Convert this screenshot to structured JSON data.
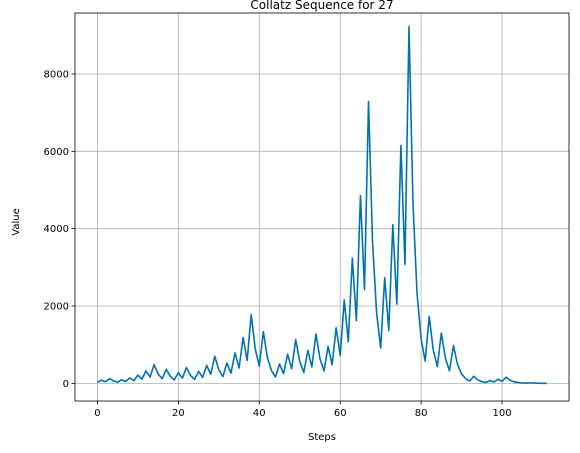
{
  "chart_data": {
    "type": "line",
    "title": "Collatz Sequence for 27",
    "xlabel": "Steps",
    "ylabel": "Value",
    "xlim": [
      -5.55,
      116.55
    ],
    "ylim": [
      -456,
      9577
    ],
    "xticks": [
      0,
      20,
      40,
      60,
      80,
      100
    ],
    "yticks": [
      0,
      2000,
      4000,
      6000,
      8000
    ],
    "xtick_labels": [
      "0",
      "20",
      "40",
      "60",
      "80",
      "100"
    ],
    "ytick_labels": [
      "0",
      "2000",
      "4000",
      "6000",
      "8000"
    ],
    "grid": true,
    "line_color": "#0072b2",
    "series": [
      {
        "x": [
          0,
          1,
          2,
          3,
          4,
          5,
          6,
          7,
          8,
          9,
          10,
          11,
          12,
          13,
          14,
          15,
          16,
          17,
          18,
          19,
          20,
          21,
          22,
          23,
          24,
          25,
          26,
          27,
          28,
          29,
          30,
          31,
          32,
          33,
          34,
          35,
          36,
          37,
          38,
          39,
          40,
          41,
          42,
          43,
          44,
          45,
          46,
          47,
          48,
          49,
          50,
          51,
          52,
          53,
          54,
          55,
          56,
          57,
          58,
          59,
          60,
          61,
          62,
          63,
          64,
          65,
          66,
          67,
          68,
          69,
          70,
          71,
          72,
          73,
          74,
          75,
          76,
          77,
          78,
          79,
          80,
          81,
          82,
          83,
          84,
          85,
          86,
          87,
          88,
          89,
          90,
          91,
          92,
          93,
          94,
          95,
          96,
          97,
          98,
          99,
          100,
          101,
          102,
          103,
          104,
          105,
          106,
          107,
          108,
          109,
          110,
          111
        ],
        "y": [
          27,
          82,
          41,
          124,
          62,
          31,
          94,
          47,
          142,
          71,
          214,
          107,
          322,
          161,
          484,
          242,
          121,
          364,
          182,
          91,
          274,
          137,
          412,
          206,
          103,
          310,
          155,
          466,
          233,
          700,
          350,
          175,
          526,
          263,
          790,
          395,
          1186,
          593,
          1780,
          890,
          445,
          1336,
          668,
          334,
          167,
          502,
          251,
          754,
          377,
          1132,
          566,
          283,
          850,
          425,
          1276,
          638,
          319,
          958,
          479,
          1438,
          719,
          2158,
          1079,
          3238,
          1619,
          4858,
          2429,
          7288,
          3644,
          1822,
          911,
          2734,
          1367,
          4102,
          2051,
          6154,
          3077,
          9232,
          4616,
          2308,
          1154,
          577,
          1732,
          866,
          433,
          1300,
          650,
          325,
          976,
          488,
          244,
          122,
          61,
          184,
          92,
          46,
          23,
          70,
          35,
          106,
          53,
          160,
          80,
          40,
          20,
          10,
          5,
          16,
          8,
          4,
          2,
          1
        ]
      }
    ]
  }
}
